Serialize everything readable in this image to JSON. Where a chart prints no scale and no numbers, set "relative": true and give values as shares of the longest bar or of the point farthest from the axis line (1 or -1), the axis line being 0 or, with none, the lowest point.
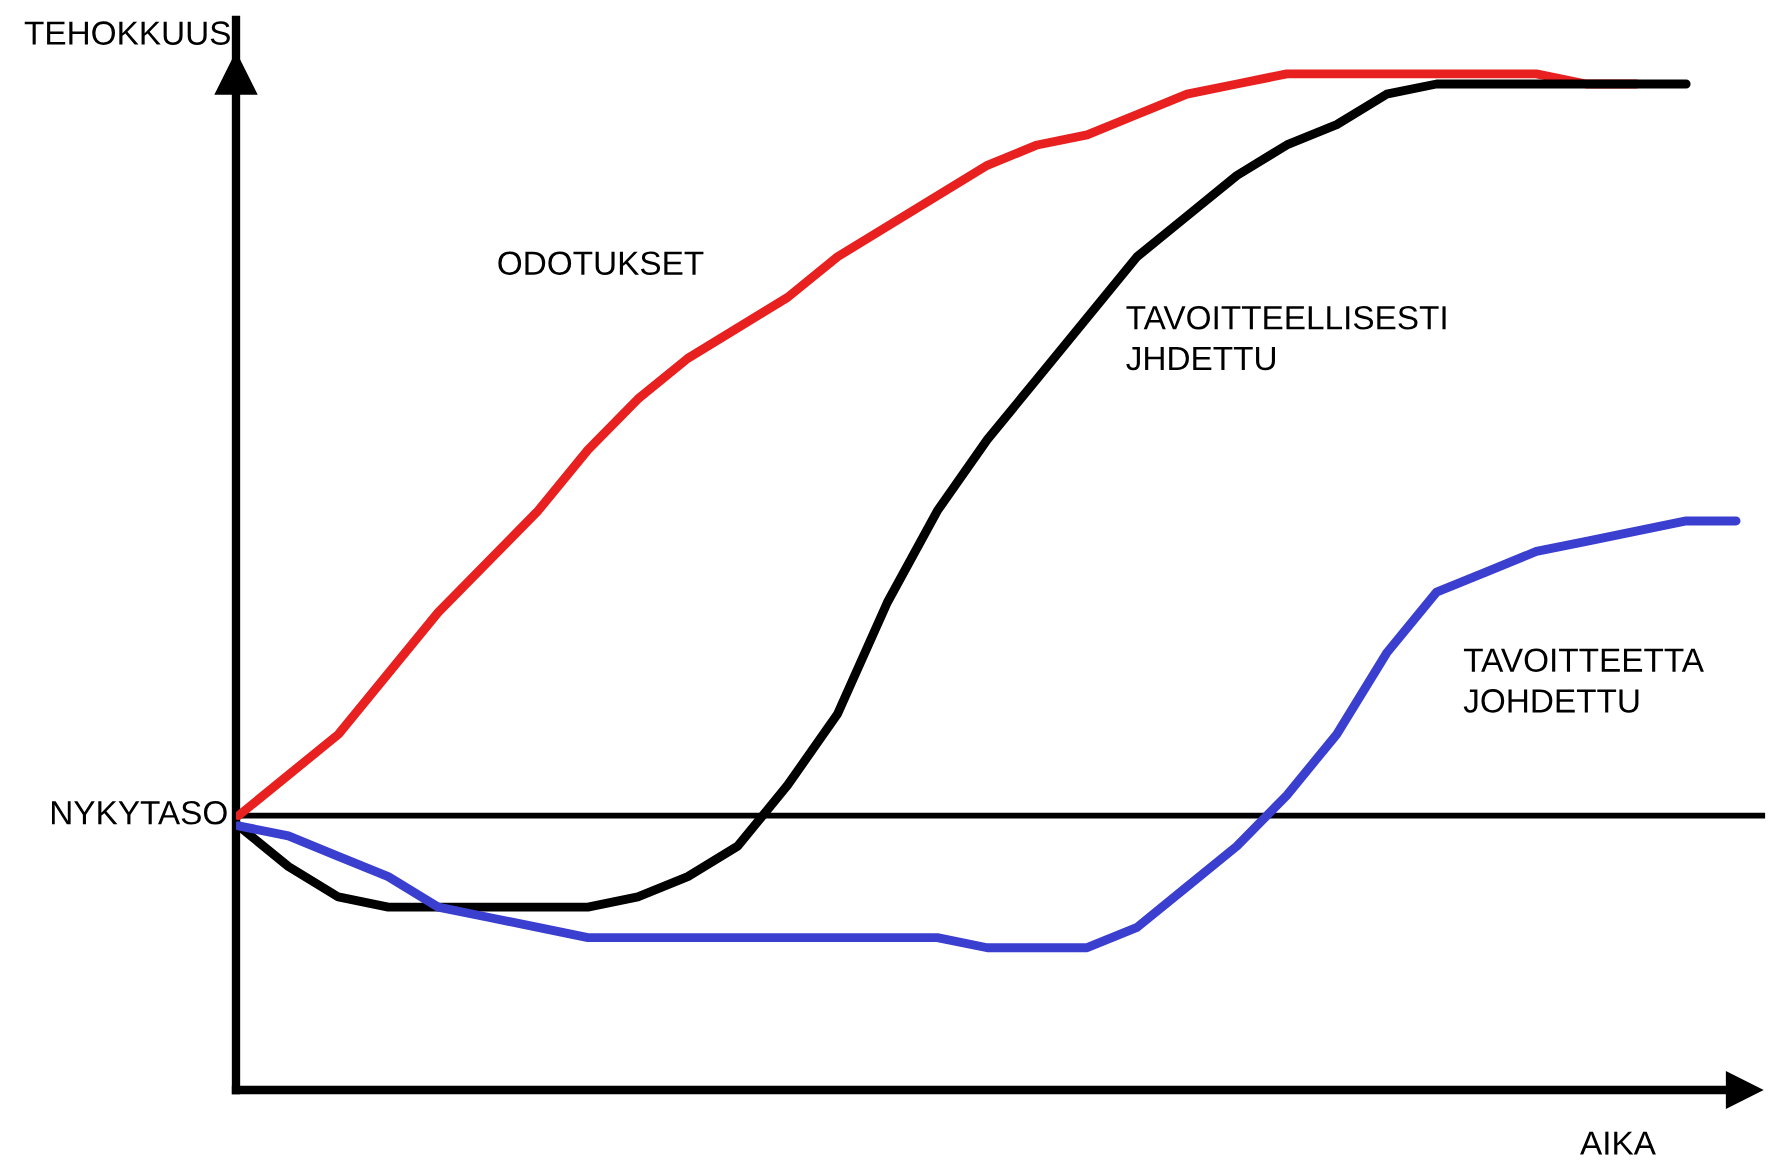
{
  "chart_data": {
    "type": "line",
    "relative": true,
    "xlabel": "AIKA",
    "ylabel": "TEHOKKUUS",
    "categories": [
      null,
      null,
      null,
      null,
      null,
      null,
      null,
      null,
      null,
      null,
      null,
      null,
      null,
      null,
      null,
      null,
      null,
      null,
      null,
      null,
      null,
      null,
      null,
      null,
      null,
      null,
      null,
      null,
      null,
      null,
      null
    ],
    "series": [
      {
        "name": "ODOTUKSET",
        "color": "#e8201f",
        "values": [
          0.27,
          0.31,
          0.35,
          0.41,
          0.47,
          0.52,
          0.57,
          0.63,
          0.68,
          0.72,
          0.75,
          0.78,
          0.82,
          0.85,
          0.88,
          0.91,
          0.93,
          0.94,
          0.96,
          0.98,
          0.99,
          1.0,
          1.0,
          1.0,
          1.0,
          1.0,
          1.0,
          0.99,
          0.99,
          null,
          null
        ]
      },
      {
        "name": "TAVOITTEELLISESTI\nJHDETTU",
        "color": "#000000",
        "values": [
          0.26,
          0.22,
          0.19,
          0.18,
          0.18,
          0.18,
          0.18,
          0.18,
          0.19,
          0.21,
          0.24,
          0.3,
          0.37,
          0.48,
          0.57,
          0.64,
          0.7,
          0.76,
          0.82,
          0.86,
          0.9,
          0.93,
          0.95,
          0.98,
          0.99,
          0.99,
          0.99,
          0.99,
          0.99,
          0.99,
          null
        ]
      },
      {
        "name": "TAVOITTEETTA\nJOHDETTU",
        "color": "#3b3fcf",
        "values": [
          0.26,
          0.25,
          0.23,
          0.21,
          0.18,
          0.17,
          0.16,
          0.15,
          0.15,
          0.15,
          0.15,
          0.15,
          0.15,
          0.15,
          0.15,
          0.14,
          0.14,
          0.14,
          0.16,
          0.2,
          0.24,
          0.29,
          0.35,
          0.43,
          0.49,
          0.51,
          0.53,
          0.54,
          0.55,
          0.56,
          0.56
        ]
      }
    ],
    "ref_lines": [
      {
        "axis": "y",
        "value": 0.27,
        "label": "NYKYTASO",
        "color": "#000000"
      }
    ],
    "legend": false
  }
}
